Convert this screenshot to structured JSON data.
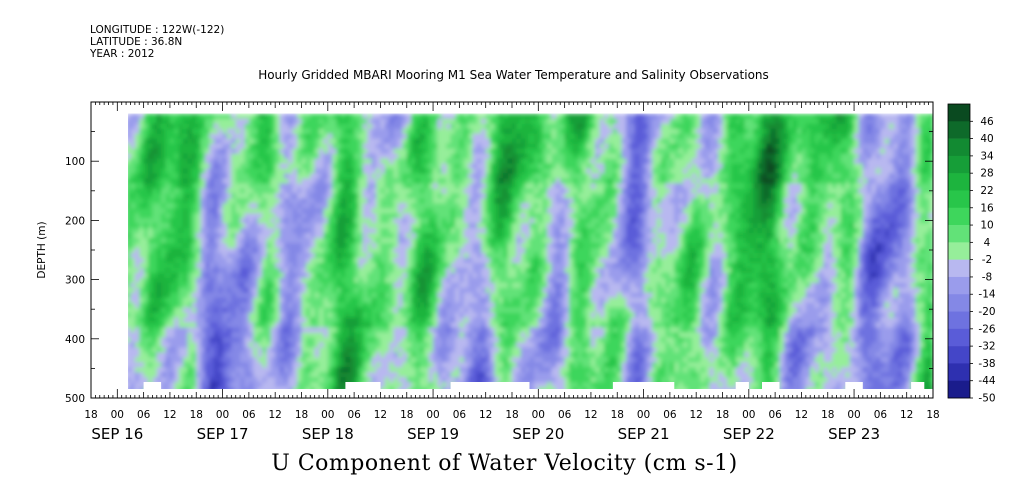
{
  "header": {
    "longitude": "LONGITUDE : 122W(-122)",
    "latitude": "LATITUDE : 36.8N",
    "year": "YEAR : 2012"
  },
  "chart_data": {
    "type": "heatmap",
    "title": "Hourly Gridded MBARI Mooring M1 Sea Water Temperature and Salinity Observations",
    "colorbar_title": "U Component of Water Velocity (cm s-1)",
    "ylabel": "DEPTH (m)",
    "ylim": [
      500,
      0
    ],
    "y_ticks": [
      100,
      200,
      300,
      400,
      500
    ],
    "x_hour_ticks": [
      "18",
      "00",
      "06",
      "12",
      "18",
      "00",
      "06",
      "12",
      "18",
      "00",
      "06",
      "12",
      "18",
      "00",
      "06",
      "12",
      "18",
      "00",
      "06",
      "12",
      "18",
      "00",
      "06",
      "12",
      "18",
      "00",
      "06",
      "12",
      "18",
      "00",
      "06",
      "12",
      "18"
    ],
    "x_date_labels": [
      {
        "label": "SEP 16",
        "hour": 0
      },
      {
        "label": "SEP 17",
        "hour": 24
      },
      {
        "label": "SEP 18",
        "hour": 48
      },
      {
        "label": "SEP 19",
        "hour": 72
      },
      {
        "label": "SEP 20",
        "hour": 96
      },
      {
        "label": "SEP 21",
        "hour": 120
      },
      {
        "label": "SEP 22",
        "hour": 144
      },
      {
        "label": "SEP 23",
        "hour": 168
      }
    ],
    "x_start_hour": -6,
    "x_end_hour": 186,
    "data_x_range_hours": [
      2,
      186
    ],
    "data_depth_range_m": [
      20,
      490
    ],
    "colorbar_levels": [
      48,
      46,
      40,
      34,
      28,
      22,
      16,
      10,
      4,
      -2,
      -8,
      -14,
      -20,
      -26,
      -32,
      -38,
      -44,
      -50
    ],
    "colorbar_label_values": [
      46,
      40,
      34,
      28,
      22,
      16,
      10,
      4,
      -2,
      -8,
      -14,
      -20,
      -26,
      -32,
      -38,
      -44,
      -50
    ],
    "colorbar_colors": [
      "#0a4a20",
      "#0e6a2a",
      "#128a32",
      "#169e38",
      "#1db43e",
      "#28c64a",
      "#3ed65c",
      "#62e278",
      "#96ee9a",
      "#b8b8f0",
      "#9a9cec",
      "#8488e6",
      "#6e72e0",
      "#5a5cd8",
      "#4446c8",
      "#2e30b0",
      "#1a1c8c"
    ]
  }
}
